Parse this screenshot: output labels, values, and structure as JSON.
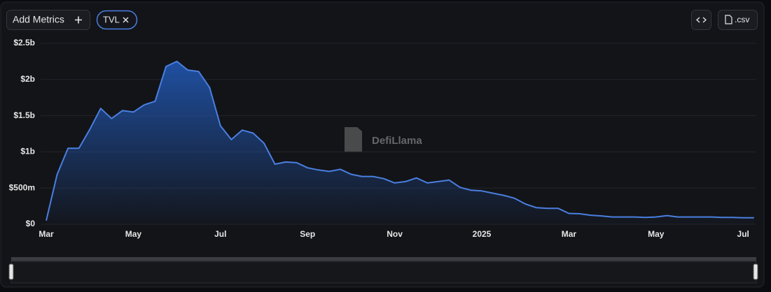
{
  "toolbar": {
    "add_metrics": "Add Metrics",
    "csv": ".csv"
  },
  "chart_data": {
    "type": "area",
    "watermark": "DefiLlama",
    "categories": [
      "Mar",
      null,
      null,
      null,
      null,
      null,
      null,
      null,
      "May",
      null,
      null,
      null,
      null,
      null,
      null,
      null,
      "Jul",
      null,
      null,
      null,
      null,
      null,
      null,
      null,
      "Sep",
      null,
      null,
      null,
      null,
      null,
      null,
      null,
      "Nov",
      null,
      null,
      null,
      null,
      null,
      null,
      null,
      "2025",
      null,
      null,
      null,
      null,
      null,
      null,
      null,
      "Mar",
      null,
      null,
      null,
      null,
      null,
      null,
      null,
      "May",
      null,
      null,
      null,
      null,
      null,
      null,
      null,
      "Jul",
      null
    ],
    "series": [
      {
        "name": "TVL",
        "color": "#4a7fe0",
        "values": [
          50000000,
          685000000,
          1050000000,
          1050000000,
          1310000000,
          1600000000,
          1460000000,
          1570000000,
          1550000000,
          1650000000,
          1700000000,
          2180000000,
          2250000000,
          2130000000,
          2110000000,
          1890000000,
          1360000000,
          1170000000,
          1300000000,
          1260000000,
          1120000000,
          830000000,
          860000000,
          850000000,
          780000000,
          750000000,
          730000000,
          760000000,
          690000000,
          660000000,
          660000000,
          630000000,
          570000000,
          590000000,
          640000000,
          570000000,
          590000000,
          610000000,
          510000000,
          470000000,
          460000000,
          430000000,
          400000000,
          360000000,
          280000000,
          230000000,
          220000000,
          220000000,
          150000000,
          145000000,
          125000000,
          115000000,
          100000000,
          100000000,
          100000000,
          95000000,
          100000000,
          120000000,
          100000000,
          100000000,
          100000000,
          100000000,
          95000000,
          95000000,
          90000000,
          90000000
        ]
      }
    ],
    "ylim": [
      0,
      2500000000
    ],
    "yticks": [
      {
        "value": 0,
        "label": "$0"
      },
      {
        "value": 500000000,
        "label": "$500m"
      },
      {
        "value": 1000000000,
        "label": "$1b"
      },
      {
        "value": 1500000000,
        "label": "$1.5b"
      },
      {
        "value": 2000000000,
        "label": "$2b"
      },
      {
        "value": 2500000000,
        "label": "$2.5b"
      }
    ],
    "grid": true
  }
}
